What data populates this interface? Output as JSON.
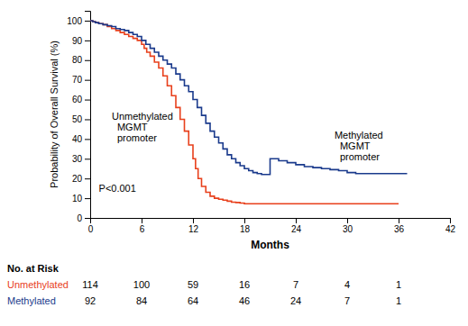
{
  "chart_data": {
    "type": "step",
    "xlabel": "Months",
    "ylabel": "Probability of Overall Survival (%)",
    "xlim": [
      0,
      42
    ],
    "ylim": [
      0,
      105
    ],
    "xticks": [
      0,
      6,
      12,
      18,
      24,
      30,
      36,
      42
    ],
    "yticks": [
      0,
      10,
      20,
      30,
      40,
      50,
      60,
      70,
      80,
      90,
      100
    ],
    "series": [
      {
        "color": "#e8401c",
        "x": [
          0,
          0.3,
          0.6,
          1,
          1.5,
          2,
          2.5,
          3,
          3.5,
          4,
          4.5,
          5,
          5.5,
          6,
          6.3,
          6.6,
          7,
          7.5,
          8,
          8.5,
          9,
          9.5,
          10,
          10.5,
          11,
          11.5,
          12,
          12.3,
          12.6,
          13,
          13.5,
          14,
          14.5,
          15,
          15.5,
          16,
          16.5,
          17,
          17.5,
          18,
          19,
          20,
          22,
          24,
          26,
          28,
          36
        ],
        "values": [
          100,
          99.5,
          99,
          98.5,
          98,
          97,
          96,
          95,
          94,
          93,
          92,
          91,
          90,
          88,
          86,
          84,
          82,
          79,
          76,
          72,
          67,
          62,
          56,
          50,
          44,
          37,
          30,
          25,
          20,
          16,
          13,
          11,
          10,
          9.5,
          9,
          8.5,
          8,
          7.8,
          7.5,
          7.2,
          7.2,
          7.2,
          7.2,
          7.2,
          7.2,
          7.2,
          7.2
        ]
      },
      {
        "color": "#1a3a8c",
        "x": [
          0,
          0.3,
          0.6,
          1,
          1.5,
          2,
          2.5,
          3,
          3.5,
          4,
          4.5,
          5,
          5.5,
          6,
          6.5,
          7,
          7.5,
          8,
          8.5,
          9,
          9.5,
          10,
          10.5,
          11,
          11.5,
          12,
          12.5,
          13,
          13.5,
          14,
          14.5,
          15,
          15.5,
          16,
          16.5,
          17,
          17.5,
          18,
          18.5,
          19,
          19.5,
          20,
          21,
          22,
          23,
          24,
          25,
          26,
          27,
          28,
          29,
          30,
          31,
          32,
          33,
          34,
          35,
          36,
          37
        ],
        "values": [
          100,
          99.5,
          99,
          98.5,
          98,
          97.5,
          97,
          96,
          95.5,
          95,
          94,
          93,
          92,
          90,
          88,
          86,
          84,
          82,
          80,
          78,
          76,
          73,
          70,
          67,
          64,
          60,
          56,
          52,
          48,
          44,
          41,
          38,
          35,
          32,
          30,
          28,
          26.5,
          25,
          24,
          23,
          22.5,
          22,
          30,
          29,
          28,
          27,
          26,
          25.5,
          25,
          24.5,
          24,
          23,
          22.5,
          22.5,
          22.5,
          22.5,
          22.5,
          22.5,
          22.5
        ]
      }
    ],
    "annotations": [
      [
        "P<0.001"
      ],
      [
        "Unmethylated",
        "MGMT",
        "promoter"
      ],
      [
        "Methylated",
        "MGMT",
        "promoter"
      ]
    ],
    "at_risk": {
      "title": "No. at Risk",
      "x": [
        0,
        6,
        12,
        18,
        24,
        30,
        36
      ],
      "rows": [
        {
          "name": "Unmethylated",
          "values": [
            114,
            100,
            59,
            16,
            7,
            4,
            1
          ]
        },
        {
          "name": "Methylated",
          "values": [
            92,
            84,
            64,
            46,
            24,
            7,
            1
          ]
        }
      ]
    }
  }
}
